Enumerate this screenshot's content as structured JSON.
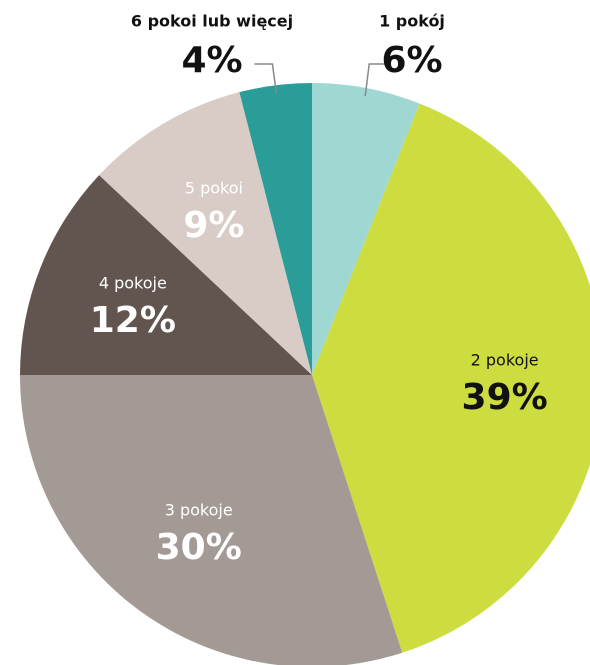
{
  "chart_data": {
    "type": "pie",
    "categories": [
      "1 pokój",
      "2 pokoje",
      "3 pokoje",
      "4 pokoje",
      "5 pokoi",
      "6 pokoi lub więcej"
    ],
    "values": [
      6,
      39,
      30,
      12,
      9,
      4
    ],
    "value_labels": [
      "6%",
      "39%",
      "30%",
      "12%",
      "9%",
      "4%"
    ],
    "colors": [
      "#9fd8d3",
      "#cddc3e",
      "#a39a95",
      "#625550",
      "#d9ccc7",
      "#2a9d98"
    ],
    "label_colors": [
      "#111111",
      "#111111",
      "#ffffff",
      "#ffffff",
      "#ffffff",
      "#111111"
    ]
  }
}
